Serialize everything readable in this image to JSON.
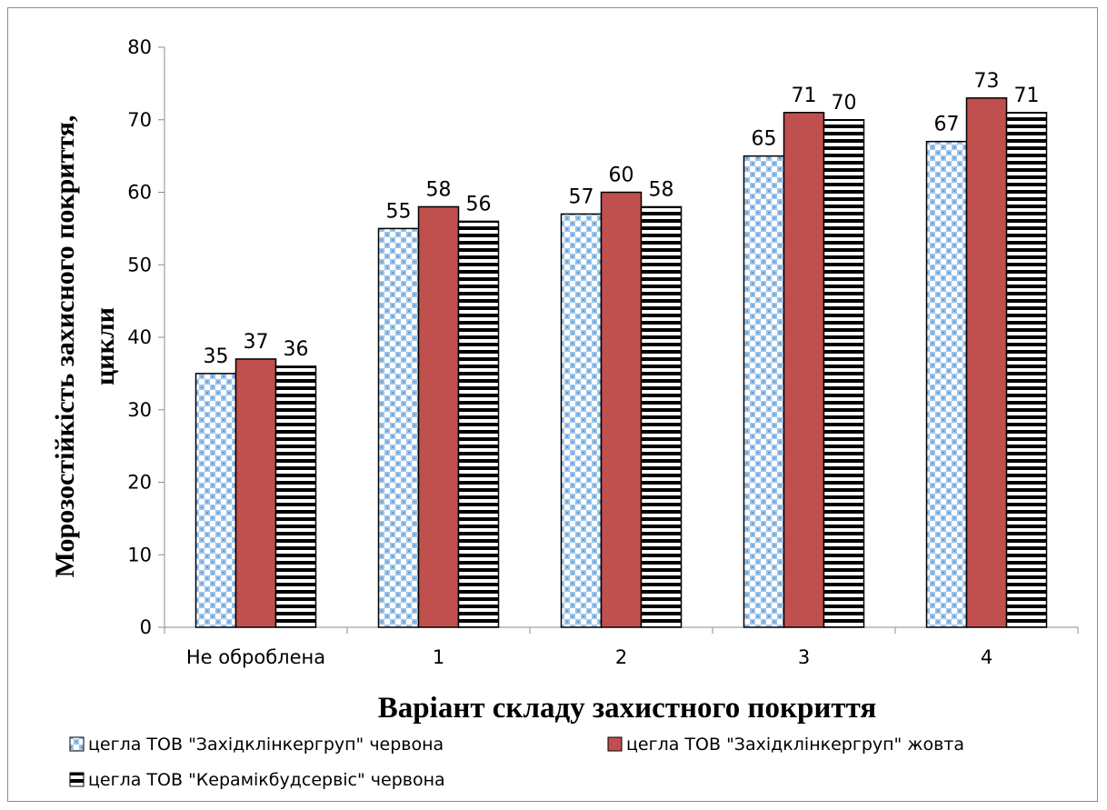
{
  "chart_data": {
    "type": "bar",
    "categories": [
      "Не оброблена",
      "1",
      "2",
      "3",
      "4"
    ],
    "series": [
      {
        "name": "цегла ТОВ \"Західклінкергруп\" червона",
        "values": [
          35,
          55,
          57,
          65,
          67
        ],
        "color": "#9cc3e8",
        "pattern": "checker-blue"
      },
      {
        "name": "цегла ТОВ \"Західклінкергруп\" жовта",
        "values": [
          37,
          58,
          60,
          71,
          73
        ],
        "color": "#c0504d",
        "pattern": "solid-red"
      },
      {
        "name": "цегла ТОВ \"Керамікбудсервіс\" червона",
        "values": [
          36,
          56,
          58,
          70,
          71
        ],
        "color": "#000000",
        "pattern": "horizontal-stripes"
      }
    ],
    "xlabel": "Варіант складу захистного покриття",
    "ylabel": [
      "Морозостійкість захисного покриття,",
      "цикли"
    ],
    "ylim": [
      0,
      80
    ],
    "yticks": [
      0,
      10,
      20,
      30,
      40,
      50,
      60,
      70,
      80
    ],
    "grid": false,
    "data_labels": true,
    "legend_position": "bottom"
  }
}
